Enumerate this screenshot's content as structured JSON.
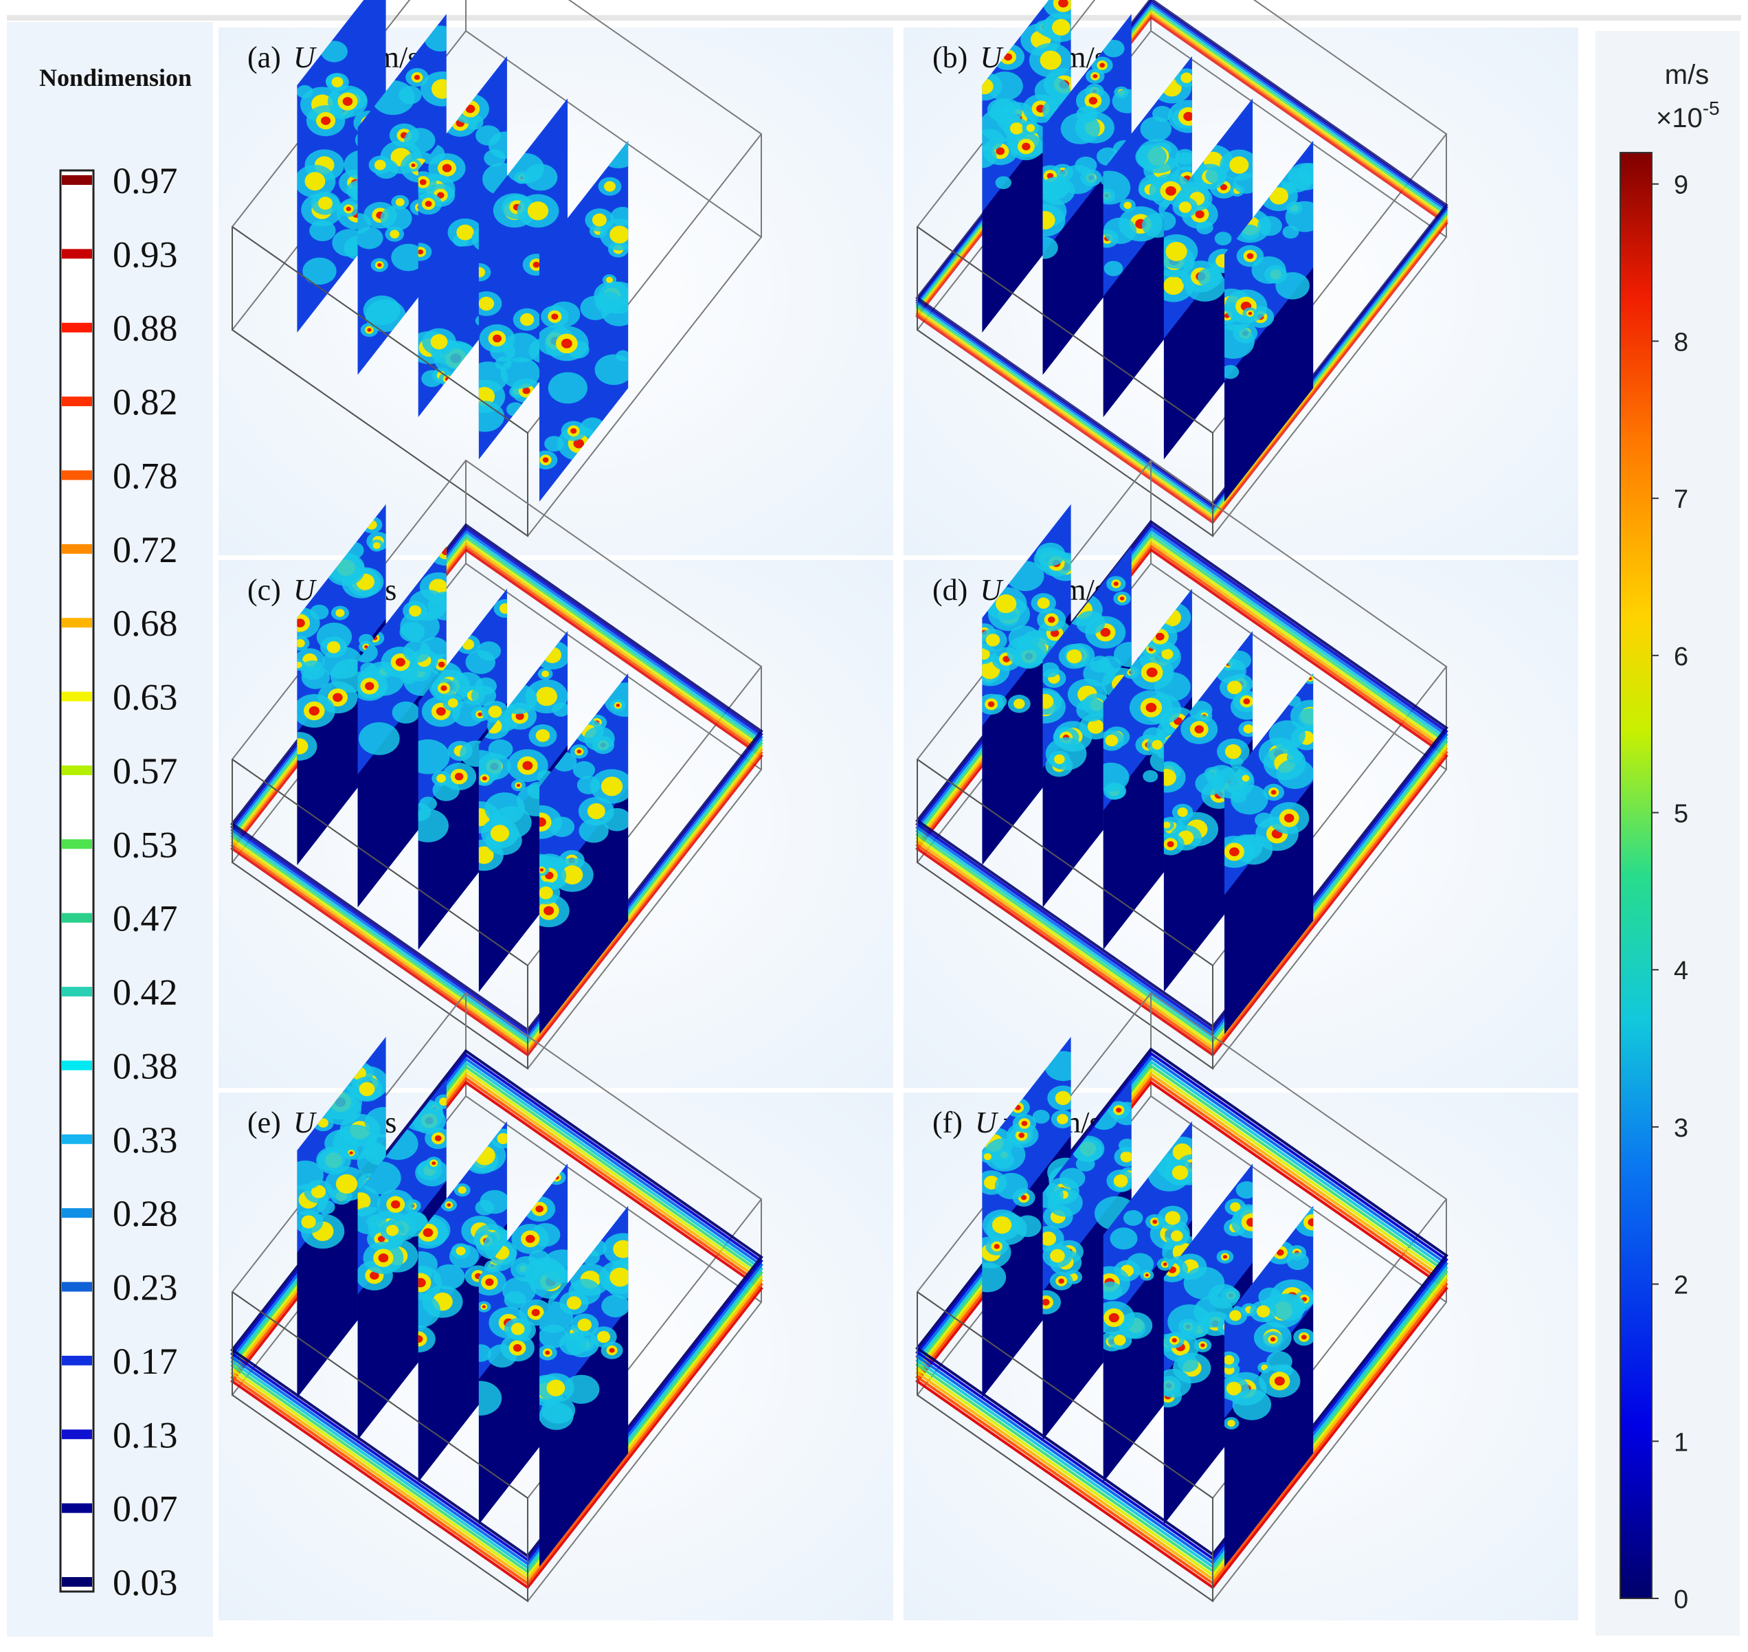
{
  "chart_data": {
    "type": "heatmap",
    "panels": [
      {
        "label": "(a)",
        "var": "U",
        "sub": "f",
        "value": "=0.1m/s",
        "contour_strength": 0
      },
      {
        "label": "(b)",
        "var": "U",
        "sub": "f",
        "value": "=0.5m/s",
        "contour_strength": 0.55
      },
      {
        "label": "(c)",
        "var": "U",
        "sub": "f",
        "value": "=1m/s",
        "contour_strength": 0.75
      },
      {
        "label": "(d)",
        "var": "U",
        "sub": "f",
        "value": "=1.5m/s",
        "contour_strength": 0.85
      },
      {
        "label": "(e)",
        "var": "U",
        "sub": "f",
        "value": "=2m/s",
        "contour_strength": 0.95
      },
      {
        "label": "(f)",
        "var": "U",
        "sub": "f",
        "value": "=2.5m/s",
        "contour_strength": 1.0
      }
    ],
    "left_legend": {
      "title": "Nondimension",
      "levels": [
        "0.97",
        "0.93",
        "0.88",
        "0.82",
        "0.78",
        "0.72",
        "0.68",
        "0.63",
        "0.57",
        "0.53",
        "0.47",
        "0.42",
        "0.38",
        "0.33",
        "0.28",
        "0.23",
        "0.17",
        "0.13",
        "0.07",
        "0.03"
      ],
      "colors": [
        "#8b0000",
        "#c80000",
        "#ff1a00",
        "#ff3000",
        "#ff5a00",
        "#ff8c00",
        "#ffb400",
        "#f5f500",
        "#b4f000",
        "#4fe34f",
        "#2ad08a",
        "#2ad0b4",
        "#00e8f0",
        "#16b4f0",
        "#1090e6",
        "#1060d6",
        "#1030e0",
        "#1010d0",
        "#000090",
        "#00006e"
      ]
    },
    "right_colorbar": {
      "unit": "m/s",
      "scale": "×10",
      "scale_exp": "-5",
      "min": 0,
      "max": 9.2,
      "ticks": [
        "0",
        "1",
        "2",
        "3",
        "4",
        "5",
        "6",
        "7",
        "8",
        "9"
      ]
    }
  }
}
